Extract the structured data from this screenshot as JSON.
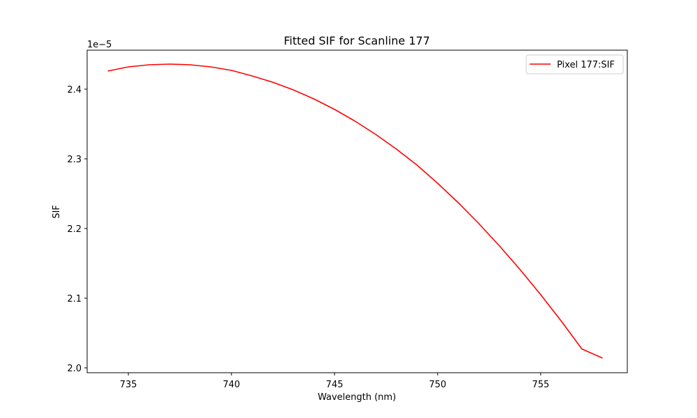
{
  "chart_data": {
    "type": "line",
    "title": "Fitted SIF for Scanline 177",
    "xlabel": "Wavelength (nm)",
    "ylabel": "SIF",
    "y_offset_label": "1e−5",
    "xlim": [
      733,
      759.2
    ],
    "ylim": [
      1.993,
      2.456
    ],
    "x_ticks": [
      735,
      740,
      745,
      750,
      755
    ],
    "x_tick_labels": [
      "735",
      "740",
      "745",
      "750",
      "755"
    ],
    "y_ticks": [
      2.0,
      2.1,
      2.2,
      2.3,
      2.4
    ],
    "y_tick_labels": [
      "2.0",
      "2.1",
      "2.2",
      "2.3",
      "2.4"
    ],
    "grid": false,
    "legend_position": "top-right",
    "series": [
      {
        "name": "Pixel 177:SIF",
        "color": "#ff0000",
        "x": [
          734,
          735,
          736,
          737,
          738,
          739,
          740,
          741,
          742,
          743,
          744,
          745,
          746,
          747,
          748,
          749,
          750,
          751,
          752,
          753,
          754,
          755,
          756,
          757,
          758
        ],
        "y": [
          2.426,
          2.432,
          2.435,
          2.436,
          2.435,
          2.432,
          2.427,
          2.419,
          2.41,
          2.399,
          2.386,
          2.371,
          2.354,
          2.335,
          2.314,
          2.291,
          2.265,
          2.237,
          2.207,
          2.175,
          2.141,
          2.105,
          2.067,
          2.027,
          2.014
        ]
      }
    ]
  }
}
